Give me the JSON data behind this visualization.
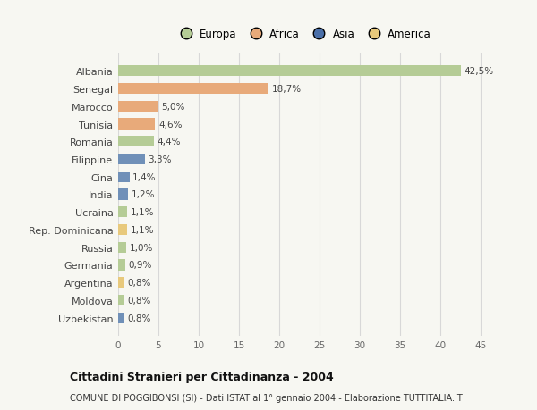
{
  "countries": [
    "Albania",
    "Senegal",
    "Marocco",
    "Tunisia",
    "Romania",
    "Filippine",
    "Cina",
    "India",
    "Ucraina",
    "Rep. Dominicana",
    "Russia",
    "Germania",
    "Argentina",
    "Moldova",
    "Uzbekistan"
  ],
  "values": [
    42.5,
    18.7,
    5.0,
    4.6,
    4.4,
    3.3,
    1.4,
    1.2,
    1.1,
    1.1,
    1.0,
    0.9,
    0.8,
    0.8,
    0.8
  ],
  "labels": [
    "42,5%",
    "18,7%",
    "5,0%",
    "4,6%",
    "4,4%",
    "3,3%",
    "1,4%",
    "1,2%",
    "1,1%",
    "1,1%",
    "1,0%",
    "0,9%",
    "0,8%",
    "0,8%",
    "0,8%"
  ],
  "colors": [
    "#b5cc96",
    "#e8aa7a",
    "#e8aa7a",
    "#e8aa7a",
    "#b5cc96",
    "#7090b8",
    "#7090b8",
    "#7090b8",
    "#b5cc96",
    "#e8c97c",
    "#b5cc96",
    "#b5cc96",
    "#e8c97c",
    "#b5cc96",
    "#7090b8"
  ],
  "legend_labels": [
    "Europa",
    "Africa",
    "Asia",
    "America"
  ],
  "legend_colors": [
    "#b5cc96",
    "#e8aa7a",
    "#4a6fa8",
    "#e8c97c"
  ],
  "title": "Cittadini Stranieri per Cittadinanza - 2004",
  "subtitle": "COMUNE DI POGGIBONSI (SI) - Dati ISTAT al 1° gennaio 2004 - Elaborazione TUTTITALIA.IT",
  "xlim": [
    0,
    46
  ],
  "xticks": [
    0,
    5,
    10,
    15,
    20,
    25,
    30,
    35,
    40,
    45
  ],
  "bg_color": "#f7f7f2",
  "plot_bg_color": "#f7f7f2"
}
